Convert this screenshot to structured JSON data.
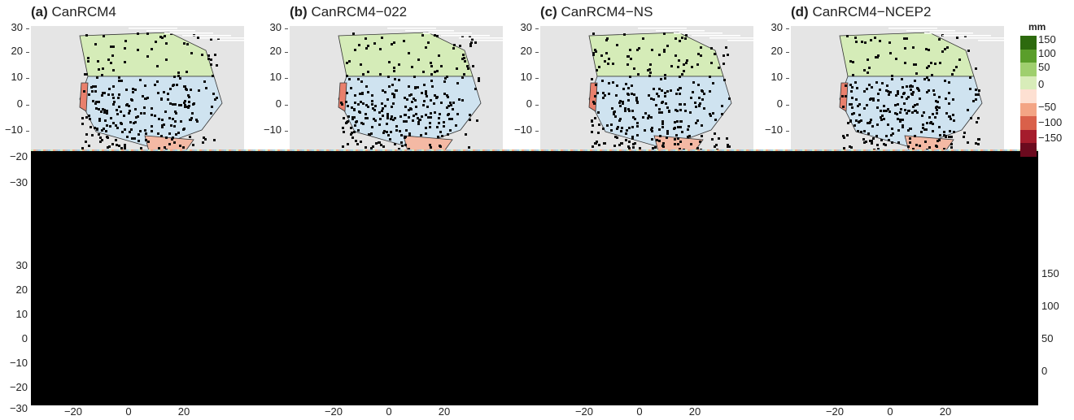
{
  "panels": [
    {
      "letter": "(a)",
      "name": "CanRCM4"
    },
    {
      "letter": "(b)",
      "name": "CanRCM4−022"
    },
    {
      "letter": "(c)",
      "name": "CanRCM4−NS"
    },
    {
      "letter": "(d)",
      "name": "CanRCM4−NCEP2"
    }
  ],
  "top_yticks": [
    "30",
    "20",
    "10",
    "0",
    "−10"
  ],
  "left_axis_yticks": [
    "−20",
    "−30",
    "30",
    "20",
    "10",
    "0",
    "−10",
    "−20",
    "−30"
  ],
  "xticks": [
    "−20",
    "0",
    "20"
  ],
  "legend": {
    "unit": "mm",
    "labels": [
      "150",
      "100",
      "50",
      "0",
      "−50",
      "−100",
      "−150"
    ],
    "colors": [
      "#2d6a0e",
      "#5a9e2a",
      "#9fcf6e",
      "#d8ecb9",
      "#fde0d2",
      "#f3a585",
      "#d9604a",
      "#a51c2c",
      "#6b0a1e"
    ]
  },
  "right_labels": [
    "150",
    "100",
    "50",
    "0"
  ]
}
